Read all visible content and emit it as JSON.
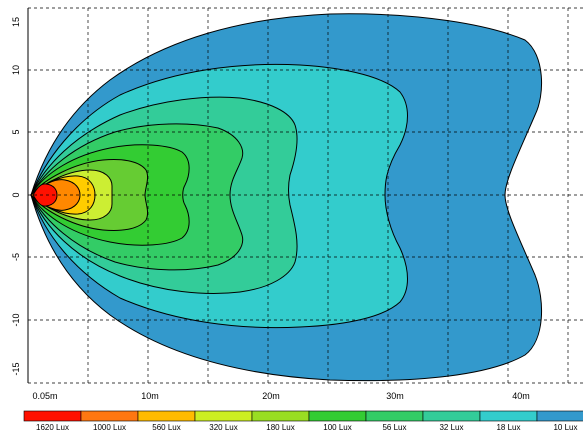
{
  "chart_data": {
    "type": "contour",
    "title": "",
    "xlabel": "",
    "ylabel": "",
    "x_ticks": [
      "0.05m",
      "10m",
      "20m",
      "30m",
      "40m"
    ],
    "y_ticks": [
      "15",
      "10",
      "5",
      "0",
      "-5",
      "-10",
      "-15"
    ],
    "grid": true,
    "units": "m",
    "zones": [
      {
        "lux": "10 Lux",
        "color": "#3399cc",
        "max_distance_m": 41.2,
        "max_halfwidth_m": 14.2
      },
      {
        "lux": "18 Lux",
        "color": "#33cccc",
        "max_distance_m": 30.5,
        "max_halfwidth_m": 10.0
      },
      {
        "lux": "32 Lux",
        "color": "#33cc99",
        "max_distance_m": 22.1,
        "max_halfwidth_m": 7.6
      },
      {
        "lux": "56 Lux",
        "color": "#33cc66",
        "max_distance_m": 17.0,
        "max_halfwidth_m": 5.6
      },
      {
        "lux": "100 Lux",
        "color": "#33cc33",
        "max_distance_m": 12.6,
        "max_halfwidth_m": 4.0
      },
      {
        "lux": "180 Lux",
        "color": "#66cc33",
        "max_distance_m": 9.6,
        "max_halfwidth_m": 3.0
      },
      {
        "lux": "320 Lux",
        "color": "#ccee33",
        "max_distance_m": 7.2,
        "max_halfwidth_m": 2.1
      },
      {
        "lux": "560 Lux",
        "color": "#ffcc00",
        "max_distance_m": 5.2,
        "max_halfwidth_m": 1.5
      },
      {
        "lux": "1000 Lux",
        "color": "#ff8800",
        "max_distance_m": 3.5,
        "max_halfwidth_m": 1.0
      },
      {
        "lux": "1620 Lux",
        "color": "#ff1100",
        "max_distance_m": 2.0,
        "max_halfwidth_m": 0.6
      }
    ],
    "legend": [
      "1620 Lux",
      "1000 Lux",
      "560 Lux",
      "320 Lux",
      "180 Lux",
      "100 Lux",
      "56 Lux",
      "32 Lux",
      "18 Lux",
      "10 Lux"
    ],
    "legend_colors": [
      "#ff1100",
      "#ff7711",
      "#ffbb00",
      "#ccee22",
      "#99dd22",
      "#33cc33",
      "#33cc66",
      "#33cc99",
      "#33cccc",
      "#3399cc"
    ]
  }
}
